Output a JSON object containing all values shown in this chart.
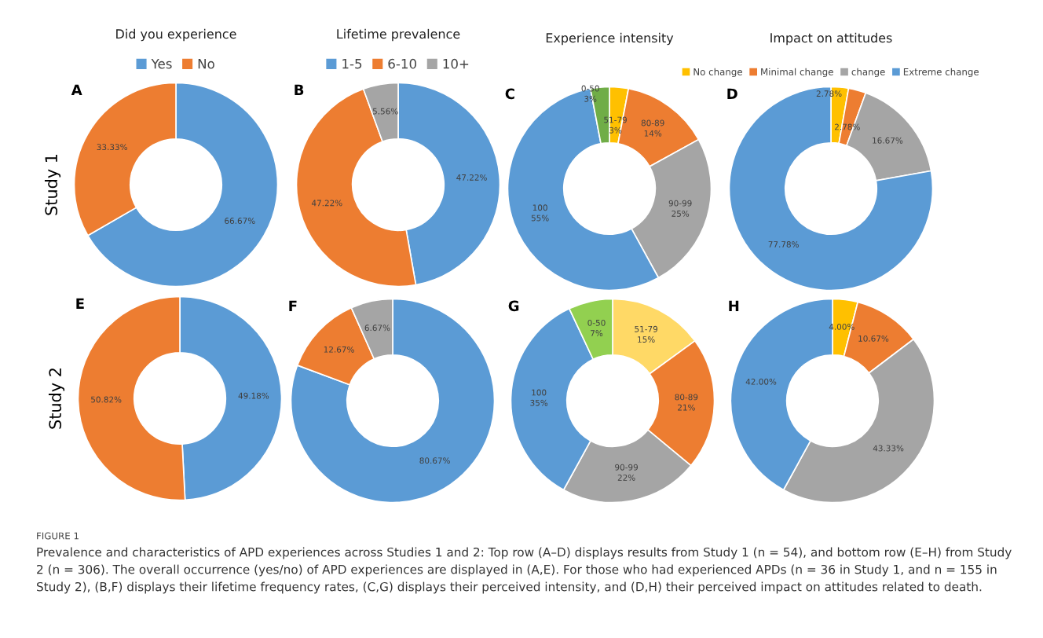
{
  "chart_data": [
    {
      "type": "donut",
      "title": "Did you experience",
      "ylabel": "Study 1",
      "annotations": [
        "A"
      ],
      "categories": [
        "Yes",
        "No"
      ],
      "values": [
        66.67,
        33.33
      ],
      "colors": [
        "#5b9bd5",
        "#ed7d31"
      ],
      "value_labels": [
        "66.67%",
        "33.33%"
      ],
      "legend": "top"
    },
    {
      "type": "donut",
      "title": "Lifetime prevalence",
      "annotations": [
        "B"
      ],
      "categories": [
        "1-5",
        "6-10",
        "10+"
      ],
      "values": [
        47.22,
        47.22,
        5.56
      ],
      "colors": [
        "#5b9bd5",
        "#ed7d31",
        "#a5a5a5"
      ],
      "value_labels": [
        "47.22%",
        "47.22%",
        "5.56%"
      ],
      "legend": "top"
    },
    {
      "type": "donut",
      "title": "Experience intensity",
      "annotations": [
        "C"
      ],
      "categories": [
        "51-79",
        "80-89",
        "90-99",
        "100",
        "0-50"
      ],
      "values": [
        3,
        14,
        25,
        55,
        3
      ],
      "colors": [
        "#ffc000",
        "#ed7d31",
        "#a5a5a5",
        "#5b9bd5",
        "#70ad47"
      ],
      "value_labels": [
        "3%",
        "14%",
        "25%",
        "55%",
        "3%"
      ]
    },
    {
      "type": "donut",
      "title": "Impact on attitudes",
      "annotations": [
        "D"
      ],
      "categories": [
        "No change",
        "Minimal change",
        "change",
        "Extreme change"
      ],
      "values": [
        2.78,
        2.78,
        16.67,
        77.78
      ],
      "colors": [
        "#ffc000",
        "#ed7d31",
        "#a5a5a5",
        "#5b9bd5"
      ],
      "value_labels": [
        "2.78%",
        "2.78%",
        "16.67%",
        "77.78%"
      ],
      "legend": "top"
    },
    {
      "type": "donut",
      "ylabel": "Study 2",
      "annotations": [
        "E"
      ],
      "categories": [
        null,
        null
      ],
      "values": [
        49.18,
        50.82
      ],
      "colors": [
        "#5b9bd5",
        "#ed7d31"
      ],
      "value_labels": [
        "49.18%",
        "50.82%"
      ]
    },
    {
      "type": "donut",
      "annotations": [
        "F"
      ],
      "categories": [
        null,
        null,
        null
      ],
      "values": [
        80.67,
        12.67,
        6.67
      ],
      "colors": [
        "#5b9bd5",
        "#ed7d31",
        "#a5a5a5"
      ],
      "value_labels": [
        "80.67%",
        "12.67%",
        "6.67%"
      ]
    },
    {
      "type": "donut",
      "annotations": [
        "G"
      ],
      "categories": [
        "51-79",
        "80-89",
        "90-99",
        "100",
        "0-50"
      ],
      "values": [
        15,
        21,
        22,
        35,
        7
      ],
      "colors": [
        "#ffd966",
        "#ed7d31",
        "#a5a5a5",
        "#5b9bd5",
        "#92d050"
      ],
      "value_labels": [
        "15%",
        "21%",
        "22%",
        "35%",
        "7%"
      ]
    },
    {
      "type": "donut",
      "annotations": [
        "H",
        "FIGURE 1",
        "Prevalence and characteristics of APD experiences across Studies 1 and 2: Top row (A–D) displays results from Study 1 (n = 54), and bottom row (E–H) from Study 2 (n = 306). The overall occurrence (yes/no) of APD experiences are displayed in (A,E). For those who had experienced APDs (n = 36 in Study 1, and n = 155 in Study 2), (B,F) displays their lifetime frequency rates, (C,G) displays their perceived intensity, and (D,H) their perceived impact on attitudes related to death."
      ],
      "categories": [
        null,
        null,
        null,
        null
      ],
      "values": [
        4.0,
        10.67,
        43.33,
        42.0
      ],
      "colors": [
        "#ffc000",
        "#ed7d31",
        "#a5a5a5",
        "#5b9bd5"
      ],
      "value_labels": [
        "4.00%",
        "10.67%",
        "43.33%",
        "42.00%"
      ]
    }
  ]
}
